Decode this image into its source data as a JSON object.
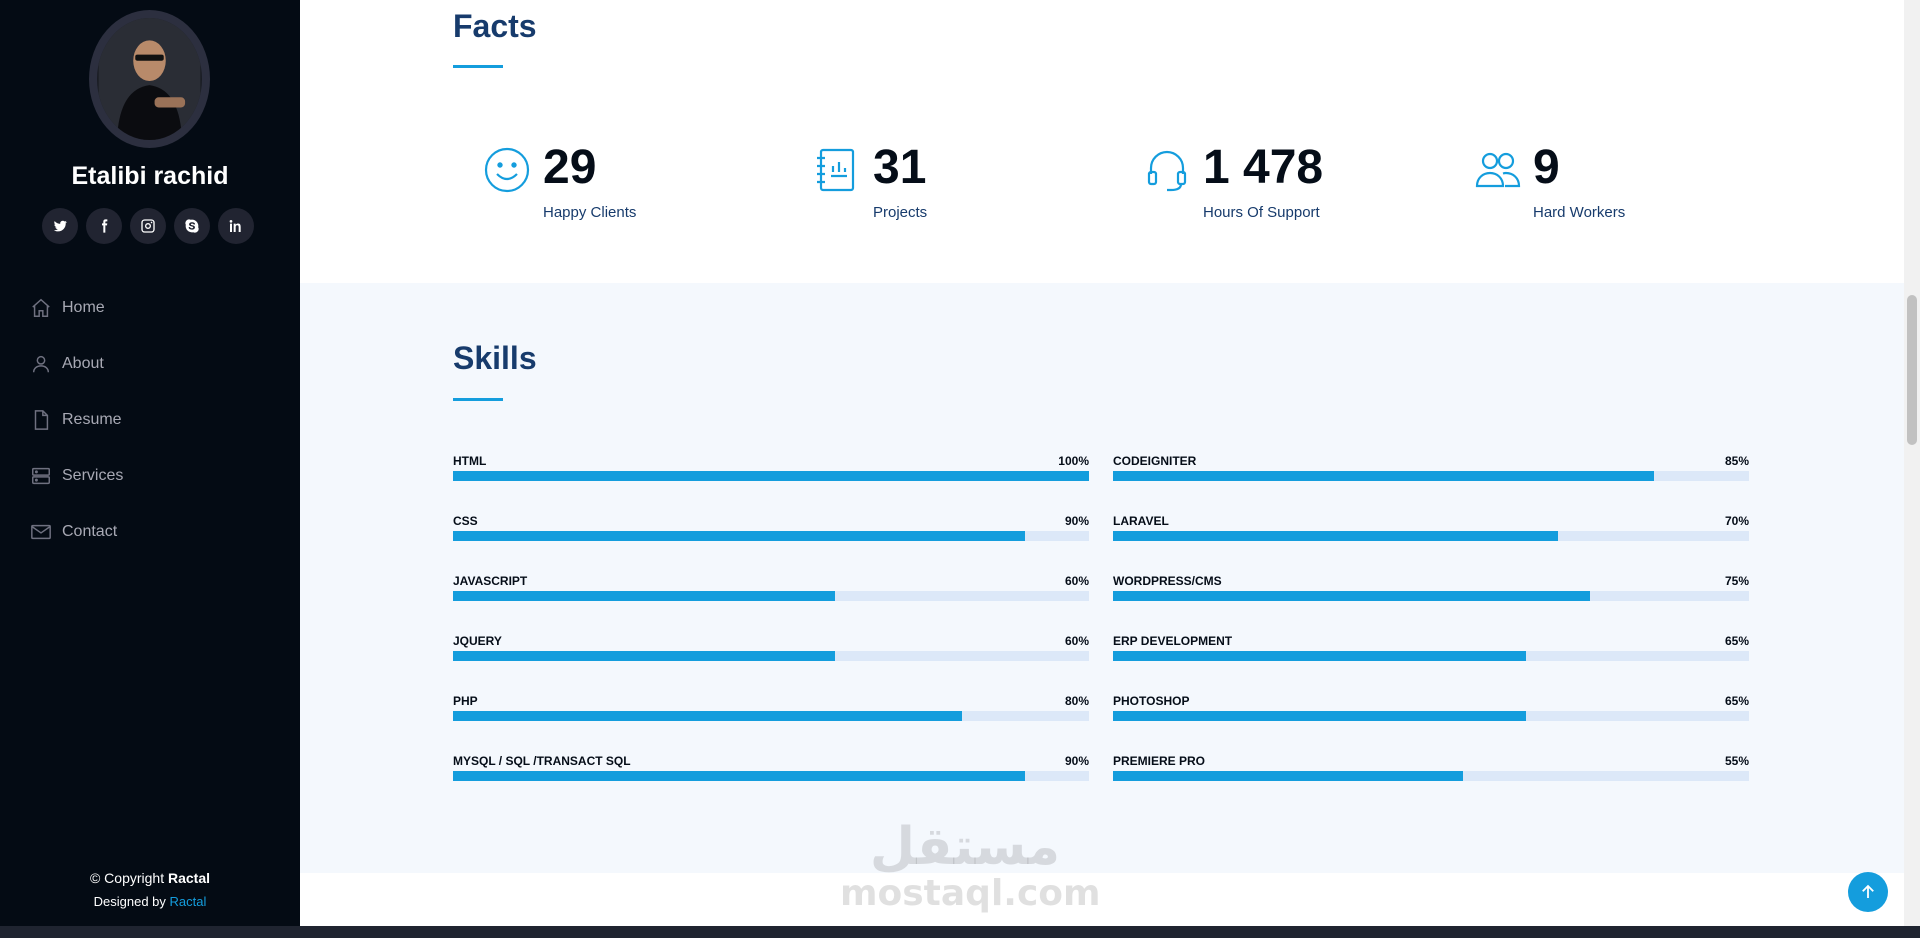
{
  "profile": {
    "name": "Etalibi rachid"
  },
  "social": [
    "twitter-icon",
    "facebook-icon",
    "instagram-icon",
    "skype-icon",
    "linkedin-icon"
  ],
  "nav": [
    {
      "label": "Home",
      "icon": "home-icon"
    },
    {
      "label": "About",
      "icon": "person-icon"
    },
    {
      "label": "Resume",
      "icon": "file-icon"
    },
    {
      "label": "Services",
      "icon": "server-icon"
    },
    {
      "label": "Contact",
      "icon": "envelope-icon"
    }
  ],
  "footer": {
    "copyright_prefix": "© Copyright ",
    "copyright_brand": "Ractal",
    "designed_prefix": "Designed by ",
    "designed_link": "Ractal"
  },
  "facts": {
    "title": "Facts",
    "items": [
      {
        "number": "29",
        "label": "Happy Clients",
        "icon": "smiley-icon"
      },
      {
        "number": "31",
        "label": "Projects",
        "icon": "journal-chart-icon"
      },
      {
        "number": "1 478",
        "label": "Hours Of Support",
        "icon": "headset-icon"
      },
      {
        "number": "9",
        "label": "Hard Workers",
        "icon": "people-icon"
      }
    ]
  },
  "skills": {
    "title": "Skills",
    "left": [
      {
        "name": "HTML",
        "value": "100%",
        "percent": 100
      },
      {
        "name": "CSS",
        "value": "90%",
        "percent": 90
      },
      {
        "name": "JAVASCRIPT",
        "value": "60%",
        "percent": 60
      },
      {
        "name": "JQUERY",
        "value": "60%",
        "percent": 60
      },
      {
        "name": "PHP",
        "value": "80%",
        "percent": 80
      },
      {
        "name": "MYSQL / SQL /TRANSACT SQL",
        "value": "90%",
        "percent": 90
      }
    ],
    "right": [
      {
        "name": "CODEIGNITER",
        "value": "85%",
        "percent": 85
      },
      {
        "name": "LARAVEL",
        "value": "70%",
        "percent": 70
      },
      {
        "name": "WORDPRESS/CMS",
        "value": "75%",
        "percent": 75
      },
      {
        "name": "ERP DEVELOPMENT",
        "value": "65%",
        "percent": 65
      },
      {
        "name": "PHOTOSHOP",
        "value": "65%",
        "percent": 65
      },
      {
        "name": "PREMIERE PRO",
        "value": "55%",
        "percent": 55
      }
    ]
  },
  "watermark": {
    "arabic": "مستقل",
    "latin": "mostaql.com"
  },
  "colors": {
    "accent": "#149ddd",
    "sidebar_bg": "#040b14",
    "title": "#173b6c",
    "track": "#dce8f8"
  }
}
